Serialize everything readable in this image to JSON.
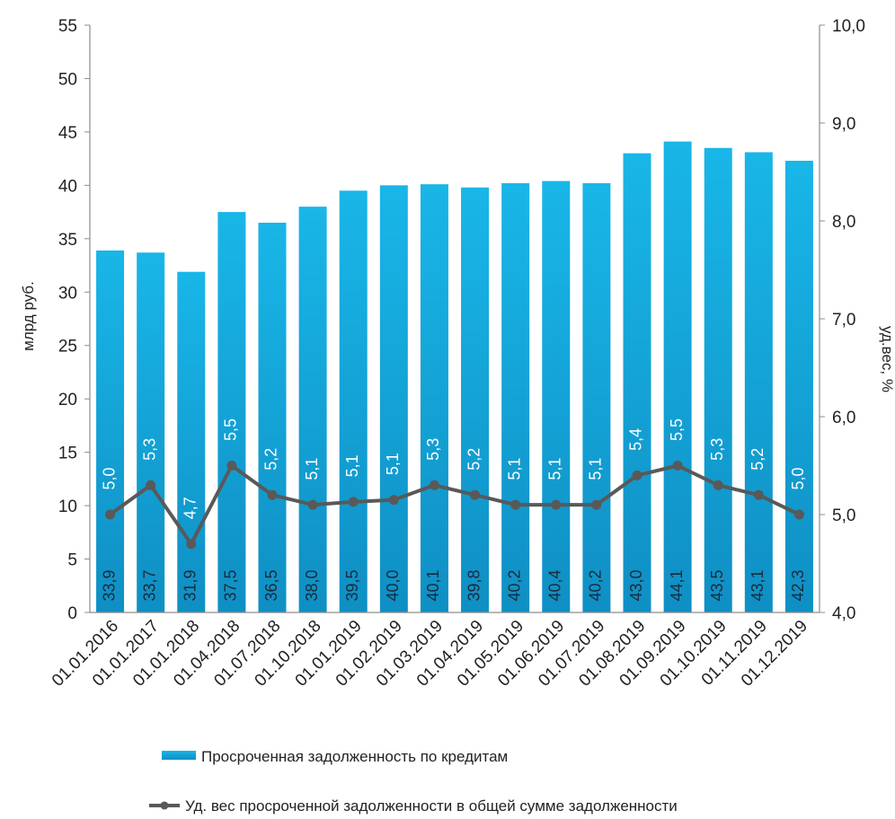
{
  "chart_data": {
    "type": "bar",
    "categories": [
      "01.01.2016",
      "01.01.2017",
      "01.01.2018",
      "01.04.2018",
      "01.07.2018",
      "01.10.2018",
      "01.01.2019",
      "01.02.2019",
      "01.03.2019",
      "01.04.2019",
      "01.05.2019",
      "01.06.2019",
      "01.07.2019",
      "01.08.2019",
      "01.09.2019",
      "01.10.2019",
      "01.11.2019",
      "01.12.2019"
    ],
    "series": [
      {
        "name": "Просроченная  задолженность по кредитам",
        "type": "bar",
        "axis": "left",
        "color": "#16a4d8",
        "values": [
          33.9,
          33.7,
          31.9,
          37.5,
          36.5,
          38.0,
          39.5,
          40.0,
          40.1,
          39.8,
          40.2,
          40.4,
          40.2,
          43.0,
          44.1,
          43.5,
          43.1,
          42.3
        ],
        "labels": [
          "33,9",
          "33,7",
          "31,9",
          "37,5",
          "36,5",
          "38,0",
          "39,5",
          "40,0",
          "40,1",
          "39,8",
          "40,2",
          "40,4",
          "40,2",
          "43,0",
          "44,1",
          "43,5",
          "43,1",
          "42,3"
        ]
      },
      {
        "name": "Уд. вес просроченной  задолженности в общей сумме задолженности",
        "type": "line",
        "axis": "right",
        "color": "#595959",
        "values": [
          5.0,
          5.3,
          4.7,
          5.5,
          5.2,
          5.1,
          5.13,
          5.15,
          5.3,
          5.2,
          5.1,
          5.1,
          5.1,
          5.4,
          5.5,
          5.3,
          5.2,
          5.0
        ],
        "labels": [
          "5,0",
          "5,3",
          "4,7",
          "5,5",
          "5,2",
          "5,1",
          "5,1",
          "5,1",
          "5,3",
          "5,2",
          "5,1",
          "5,1",
          "5,1",
          "5,4",
          "5,5",
          "5,3",
          "5,2",
          "5,0"
        ]
      }
    ],
    "ylabel": "млрд руб.",
    "ylabel_right": "уд.вес, %",
    "ylim": [
      0,
      55
    ],
    "ylim_right": [
      4.0,
      10.0
    ],
    "y_ticks": [
      "0",
      "5",
      "10",
      "15",
      "20",
      "25",
      "30",
      "35",
      "40",
      "45",
      "50",
      "55"
    ],
    "y_ticks_right": [
      "4,0",
      "5,0",
      "6,0",
      "7,0",
      "8,0",
      "9,0",
      "10,0"
    ],
    "grid": false,
    "legend_position": "bottom"
  }
}
